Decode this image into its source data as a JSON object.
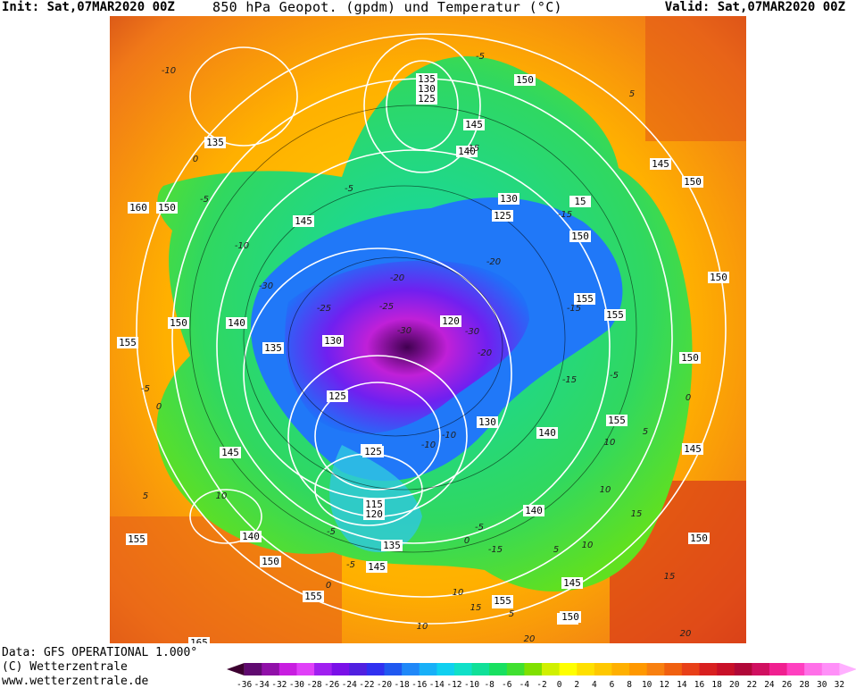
{
  "header": {
    "init": "Init: Sat,07MAR2020 00Z",
    "title": "850 hPa Geopot. (gpdm) und Temperatur (°C)",
    "valid": "Valid: Sat,07MAR2020 00Z"
  },
  "footer": {
    "data_line": "Data: GFS OPERATIONAL 1.000°",
    "copyright": "(C) Wetterzentrale",
    "url": "www.wetterzentrale.de"
  },
  "legend": {
    "ticks": [
      "-36",
      "-34",
      "-32",
      "-30",
      "-28",
      "-26",
      "-24",
      "-22",
      "-20",
      "-18",
      "-16",
      "-14",
      "-12",
      "-10",
      "-8",
      "-6",
      "-4",
      "-2",
      "0",
      "2",
      "4",
      "6",
      "8",
      "10",
      "12",
      "14",
      "16",
      "18",
      "20",
      "22",
      "24",
      "26",
      "28",
      "30",
      "32"
    ],
    "colors": [
      "#3c0030",
      "#600a70",
      "#9010a8",
      "#c81ee0",
      "#e040f8",
      "#a020f0",
      "#7a10e8",
      "#5020e0",
      "#3030f0",
      "#2058f0",
      "#2088f8",
      "#18b0f8",
      "#10d0f0",
      "#10e0c8",
      "#10e098",
      "#18e060",
      "#40e030",
      "#80e000",
      "#d0f000",
      "#ffff00",
      "#ffe000",
      "#ffc800",
      "#ffb000",
      "#ff9800",
      "#f88010",
      "#f06010",
      "#e84018",
      "#d82020",
      "#c81028",
      "#b00838",
      "#d01060",
      "#f02090",
      "#ff40c0",
      "#ff70e8",
      "#ff90f8",
      "#ffb0ff"
    ]
  },
  "map": {
    "height_labels": [
      "135",
      "130",
      "125",
      "150",
      "145",
      "140",
      "145",
      "150",
      "130",
      "125",
      "150",
      "155",
      "150",
      "160",
      "135",
      "145",
      "150",
      "155",
      "150",
      "140",
      "150",
      "155",
      "135",
      "130",
      "120",
      "125",
      "150",
      "155",
      "140",
      "145",
      "130",
      "145",
      "140",
      "150",
      "125",
      "115",
      "120",
      "140",
      "135",
      "145",
      "150",
      "155",
      "140",
      "155",
      "150",
      "155",
      "145",
      "155",
      "150",
      "165",
      "15"
    ],
    "temp_labels": [
      "-10",
      "-5",
      "0",
      "-5",
      "-15",
      "-5",
      "-15",
      "-15",
      "-20",
      "-25",
      "-20",
      "-30",
      "-25",
      "-30",
      "-30",
      "-15",
      "-10",
      "-5",
      "0",
      "5",
      "10",
      "15",
      "5",
      "10",
      "-5",
      "0",
      "10",
      "15",
      "5",
      "10",
      "15",
      "20",
      "-5",
      "0",
      "-10",
      "-20",
      "0",
      "5",
      "10",
      "-10",
      "5",
      "-5",
      "-15",
      "-5",
      "10",
      "20"
    ]
  }
}
